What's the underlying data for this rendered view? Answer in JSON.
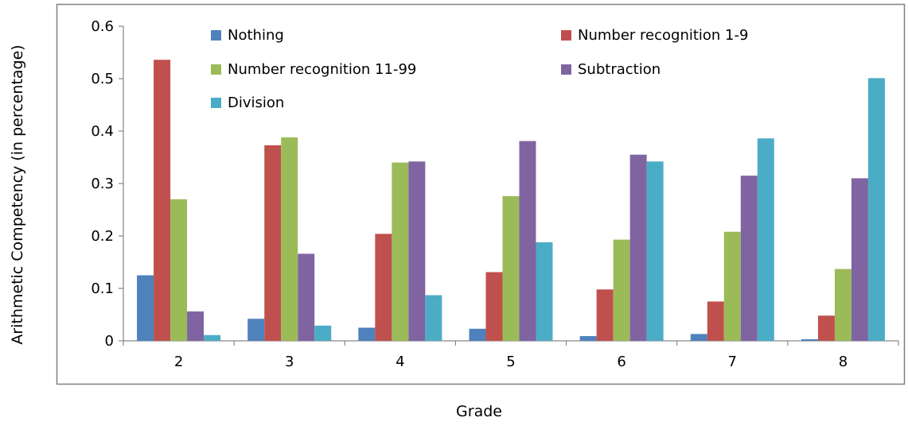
{
  "chart_data": {
    "type": "bar",
    "title": "",
    "xlabel": "Grade",
    "ylabel": "Arithmetic Competency (in percentage)",
    "ylim": [
      0,
      0.6
    ],
    "yticks": [
      "0",
      "0.1",
      "0.2",
      "0.3",
      "0.4",
      "0.5",
      "0.6"
    ],
    "categories": [
      "2",
      "3",
      "4",
      "5",
      "6",
      "7",
      "8"
    ],
    "series": [
      {
        "name": "Nothing",
        "color": "#4F81BD",
        "values": [
          0.125,
          0.042,
          0.025,
          0.023,
          0.009,
          0.013,
          0.003
        ]
      },
      {
        "name": "Number recognition 1-9",
        "color": "#C0504D",
        "values": [
          0.536,
          0.373,
          0.204,
          0.131,
          0.098,
          0.075,
          0.048
        ]
      },
      {
        "name": "Number recognition 11-99",
        "color": "#9BBB59",
        "values": [
          0.27,
          0.388,
          0.34,
          0.276,
          0.193,
          0.208,
          0.137
        ]
      },
      {
        "name": "Subtraction",
        "color": "#8064A2",
        "values": [
          0.056,
          0.166,
          0.342,
          0.381,
          0.355,
          0.315,
          0.31
        ]
      },
      {
        "name": "Division",
        "color": "#4BACC6",
        "values": [
          0.011,
          0.029,
          0.087,
          0.188,
          0.342,
          0.386,
          0.501
        ]
      }
    ],
    "legend_position": "top, inside plot area",
    "grid": false
  }
}
